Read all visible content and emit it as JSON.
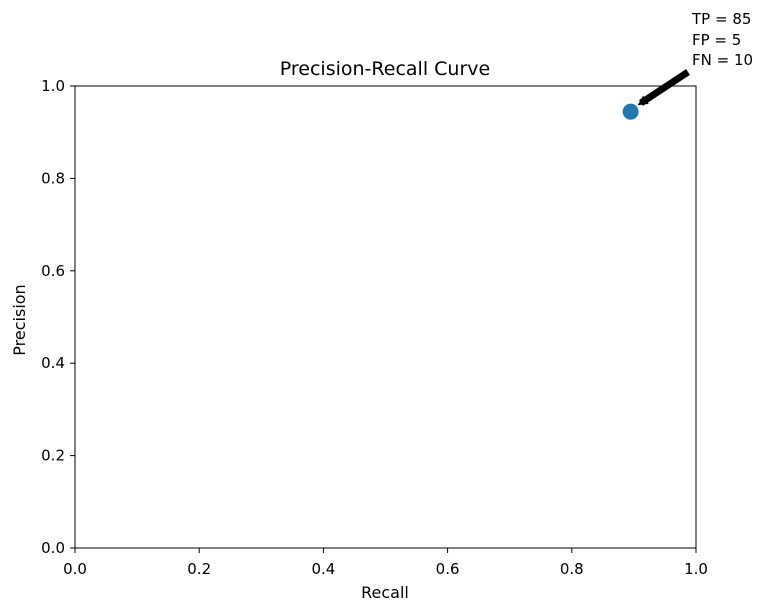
{
  "chart_data": {
    "type": "scatter",
    "title": "Precision-Recall Curve",
    "xlabel": "Recall",
    "ylabel": "Precision",
    "xlim": [
      0.0,
      1.0
    ],
    "ylim": [
      0.0,
      1.0
    ],
    "xticks": [
      "0.0",
      "0.2",
      "0.4",
      "0.6",
      "0.8",
      "1.0"
    ],
    "yticks": [
      "0.0",
      "0.2",
      "0.4",
      "0.6",
      "0.8",
      "1.0"
    ],
    "grid": false,
    "legend": "none",
    "points": [
      {
        "x": 0.8947,
        "y": 0.9444
      }
    ],
    "point_color": "#1f77b4",
    "annotation": {
      "lines": [
        "TP = 85",
        "FP = 5",
        "FN = 10"
      ],
      "points_to": {
        "x": 0.8947,
        "y": 0.9444
      },
      "arrow_color": "#000000"
    }
  }
}
